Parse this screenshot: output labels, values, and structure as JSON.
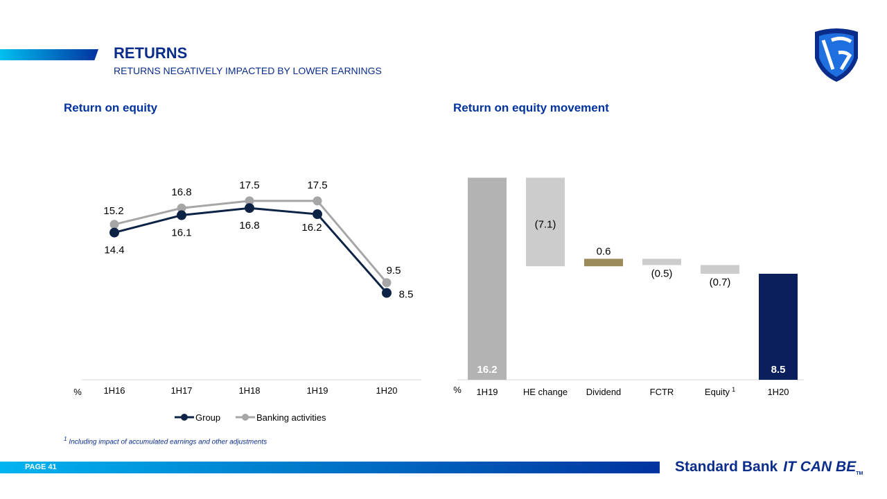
{
  "header": {
    "title": "RETURNS",
    "subtitle": "RETURNS NEGATIVELY IMPACTED BY LOWER EARNINGS"
  },
  "footer": {
    "footnote": "Including impact of accumulated earnings and other adjustments",
    "footnote_marker": "1",
    "page": "PAGE 41",
    "brand": "Standard Bank",
    "slogan": "IT CAN BE",
    "trademark": "TM"
  },
  "colors": {
    "brand": "#0a2d8c",
    "group": "#0d2346",
    "banking": "#a6a6a6",
    "bar_grey": "#b3b3b3",
    "bar_light": "#cccccc",
    "dividend": "#9c8a5a",
    "bar_navy": "#0a1f5c"
  },
  "chart_data": [
    {
      "type": "line",
      "title": "Return on equity",
      "unit": "%",
      "categories": [
        "1H16",
        "1H17",
        "1H18",
        "1H19",
        "1H20"
      ],
      "ylim": [
        0,
        20
      ],
      "grid": false,
      "legend": "bottom",
      "series": [
        {
          "name": "Group",
          "values": [
            14.4,
            16.1,
            16.8,
            16.2,
            8.5
          ]
        },
        {
          "name": "Banking activities",
          "values": [
            15.2,
            16.8,
            17.5,
            17.5,
            9.5
          ]
        }
      ]
    },
    {
      "type": "waterfall",
      "title": "Return on equity movement",
      "unit": "%",
      "categories": [
        "1H19",
        "HE change",
        "Dividend",
        "FCTR",
        "Equity",
        "1H20"
      ],
      "category_superscripts": [
        "",
        "",
        "",
        "",
        "1",
        ""
      ],
      "values": [
        16.2,
        -7.1,
        0.6,
        -0.5,
        -0.7,
        8.5
      ],
      "labels": [
        "16.2",
        "(7.1)",
        "0.6",
        "(0.5)",
        "(0.7)",
        "8.5"
      ],
      "ylim": [
        0,
        16.2
      ]
    }
  ]
}
